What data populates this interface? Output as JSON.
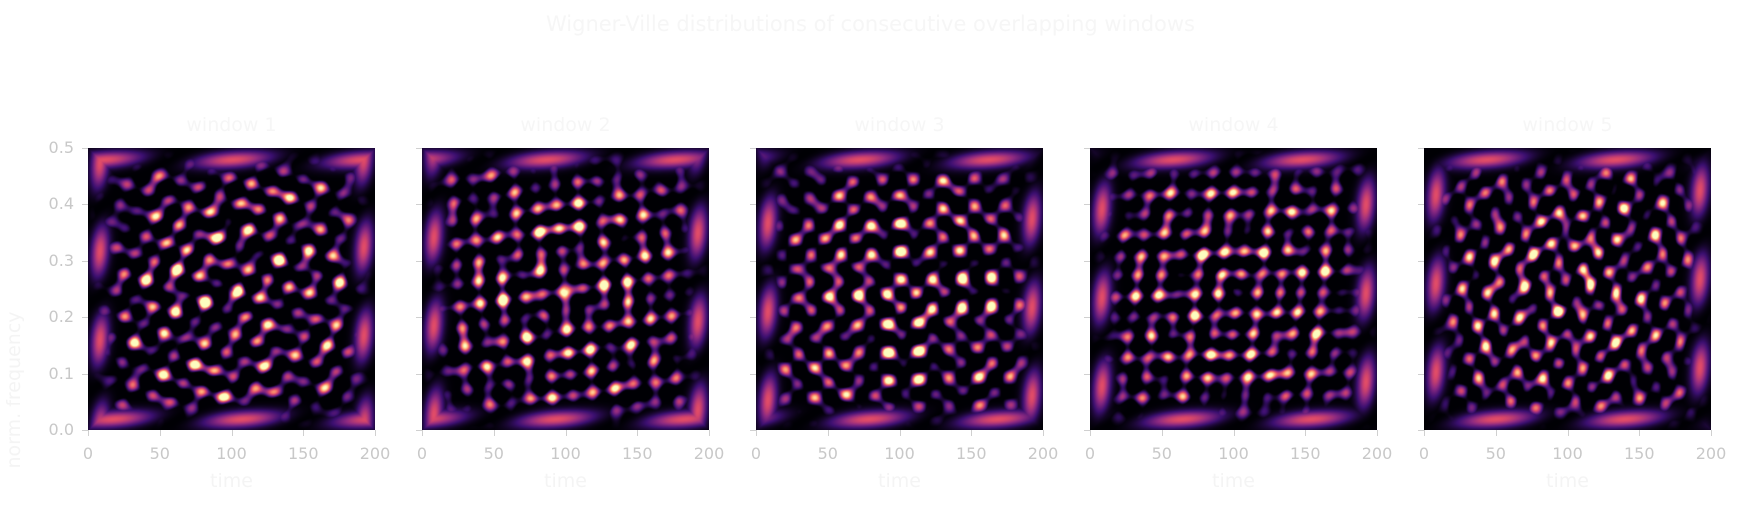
{
  "figure": {
    "suptitle": "Wigner-Ville distributions of consecutive overlapping windows",
    "ylabel": "norm. frequency",
    "colormap": [
      "#000004",
      "#3b0f70",
      "#8c2981",
      "#de4968",
      "#fe9f6d",
      "#fcfdbf"
    ]
  },
  "chart_data": [
    {
      "type": "heatmap",
      "title": "window 1",
      "xlabel": "time",
      "ylabel": "norm. frequency",
      "xlim": [
        0,
        200
      ],
      "ylim": [
        0.0,
        0.5
      ],
      "xticks": [
        "0",
        "50",
        "100",
        "150",
        "200"
      ],
      "yticks": [
        "0.0",
        "0.1",
        "0.2",
        "0.3",
        "0.4",
        "0.5"
      ]
    },
    {
      "type": "heatmap",
      "title": "window 2",
      "xlabel": "time",
      "xlim": [
        0,
        200
      ],
      "ylim": [
        0.0,
        0.5
      ],
      "xticks": [
        "0",
        "50",
        "100",
        "150",
        "200"
      ]
    },
    {
      "type": "heatmap",
      "title": "window 3",
      "xlabel": "time",
      "xlim": [
        0,
        200
      ],
      "ylim": [
        0.0,
        0.5
      ],
      "xticks": [
        "0",
        "50",
        "100",
        "150",
        "200"
      ]
    },
    {
      "type": "heatmap",
      "title": "window 4",
      "xlabel": "time",
      "xlim": [
        0,
        200
      ],
      "ylim": [
        0.0,
        0.5
      ],
      "xticks": [
        "0",
        "50",
        "100",
        "150",
        "200"
      ]
    },
    {
      "type": "heatmap",
      "title": "window 5",
      "xlabel": "time",
      "xlim": [
        0,
        200
      ],
      "ylim": [
        0.0,
        0.5
      ],
      "xticks": [
        "0",
        "50",
        "100",
        "150",
        "200"
      ]
    }
  ]
}
